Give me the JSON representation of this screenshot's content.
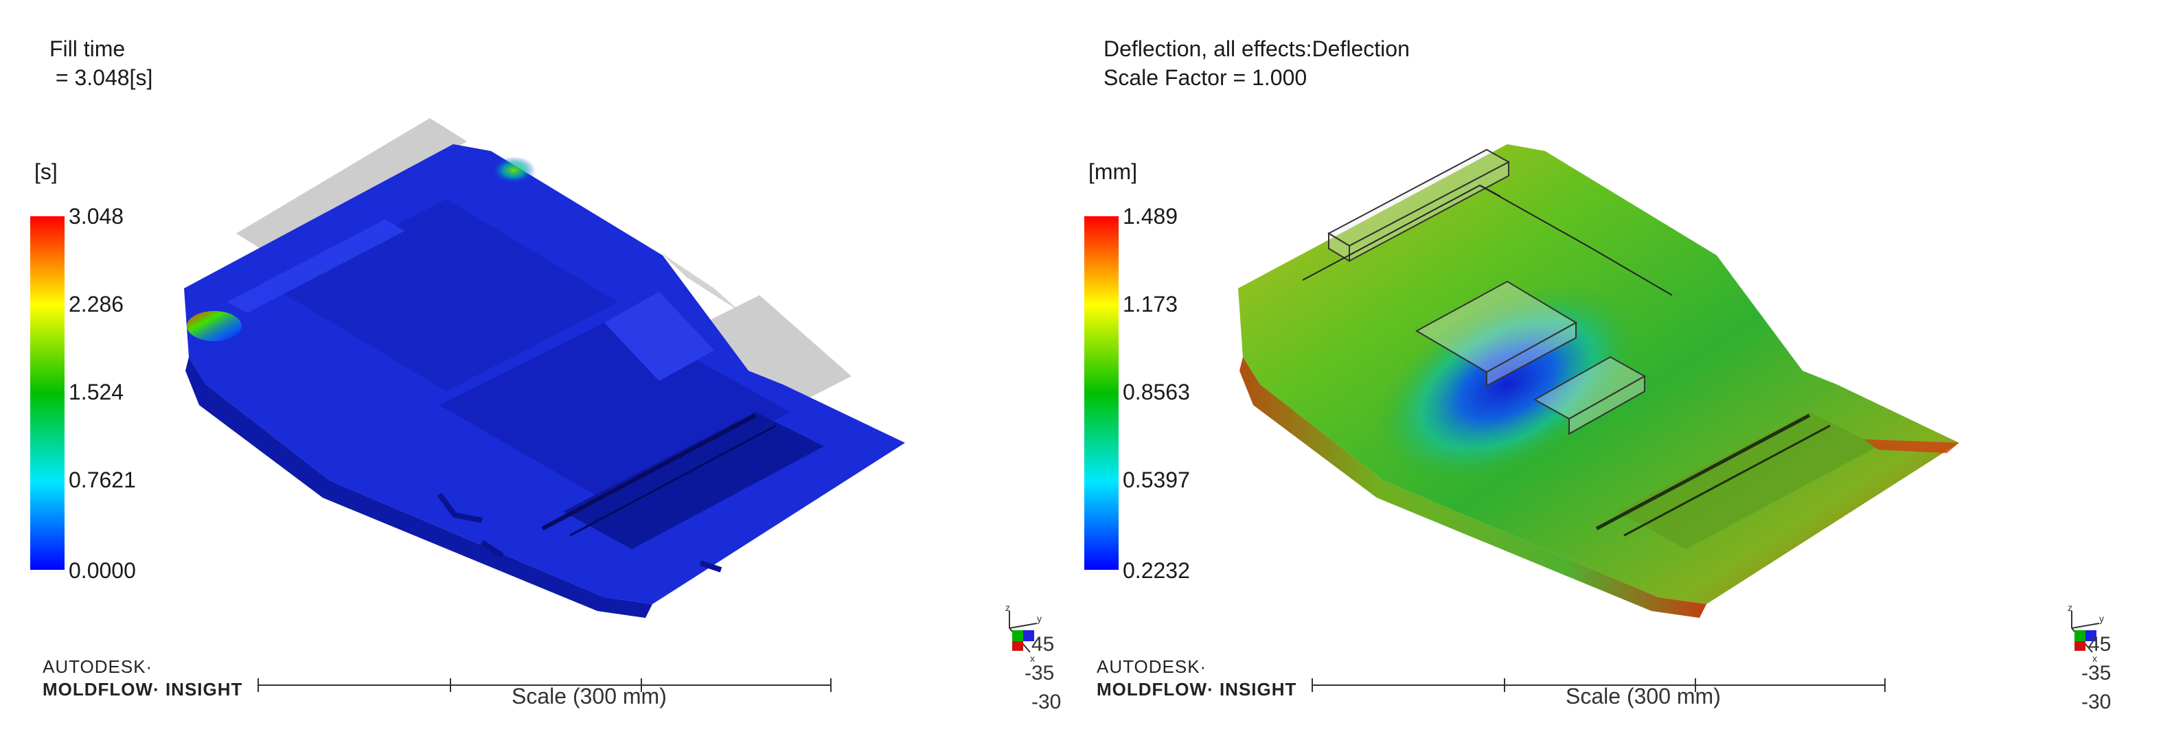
{
  "left": {
    "title_line1": "Fill time",
    "title_line2": " = 3.048[s]",
    "unit": "[s]",
    "ticks": [
      "3.048",
      "2.286",
      "1.524",
      "0.7621",
      "0.0000"
    ],
    "colormap": "rainbow-blue-to-red"
  },
  "right": {
    "title_line1": "Deflection, all effects:Deflection",
    "title_line2": "Scale Factor = 1.000",
    "unit": "[mm]",
    "ticks": [
      "1.489",
      "1.173",
      "0.8563",
      "0.5397",
      "0.2232"
    ],
    "colormap": "rainbow-blue-to-red"
  },
  "branding": {
    "line1": "AUTODESK·",
    "line2": "MOLDFLOW· INSIGHT"
  },
  "scale_label": "Scale (300 mm)",
  "orientation": {
    "axes": [
      "z",
      "y",
      "x"
    ],
    "angles": [
      "45",
      "-35",
      "-30"
    ]
  },
  "colors": {
    "red": "#ff0000",
    "yellow": "#ffff00",
    "green": "#00c000",
    "cyan": "#00ffff",
    "blue": "#0000ff"
  }
}
